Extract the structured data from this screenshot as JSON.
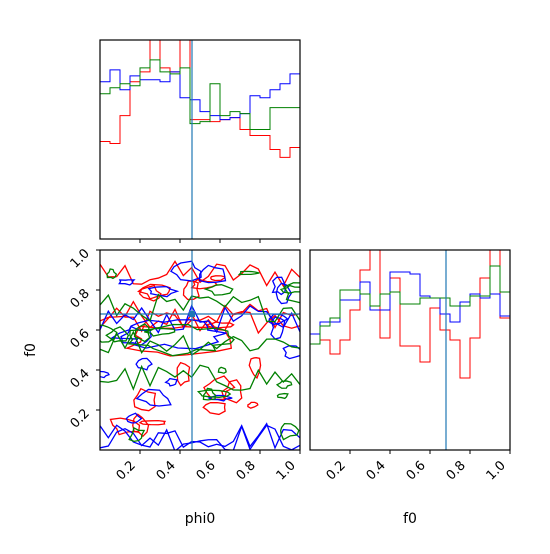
{
  "chart_data": {
    "type": "corner",
    "variables": [
      "phi0",
      "f0"
    ],
    "truth": {
      "phi0": 0.46,
      "f0": 0.68,
      "color": "#1f77b4"
    },
    "series_colors": [
      "#ff0000",
      "#0000ff",
      "#008000"
    ],
    "panels": [
      {
        "id": "hist-phi0",
        "type": "step-histogram",
        "variable": "phi0",
        "xlim": [
          0,
          1
        ],
        "ylim": [
          0,
          1
        ],
        "xticks": [
          "0.2",
          "0.4",
          "0.6",
          "0.8",
          "1.0"
        ],
        "show_xticklabels": false,
        "show_yticks": false,
        "bin_edges": [
          0,
          0.05,
          0.1,
          0.15,
          0.2,
          0.25,
          0.3,
          0.35,
          0.4,
          0.45,
          0.5,
          0.55,
          0.6,
          0.65,
          0.7,
          0.75,
          0.8,
          0.85,
          0.9,
          0.95,
          1.0
        ],
        "series": [
          {
            "color": "#ff0000",
            "values": [
              0.49,
              0.48,
              0.62,
              0.79,
              0.84,
              1.05,
              0.86,
              0.84,
              1.05,
              0.6,
              0.6,
              0.59,
              0.6,
              0.61,
              0.55,
              0.52,
              0.52,
              0.45,
              0.41,
              0.46
            ]
          },
          {
            "color": "#0000ff",
            "values": [
              0.79,
              0.85,
              0.75,
              0.82,
              0.8,
              0.8,
              0.79,
              0.84,
              0.71,
              0.7,
              0.64,
              0.62,
              0.6,
              0.61,
              0.63,
              0.72,
              0.71,
              0.75,
              0.78,
              0.83
            ]
          },
          {
            "color": "#008000",
            "values": [
              0.73,
              0.76,
              0.78,
              0.77,
              0.86,
              0.9,
              0.84,
              0.83,
              0.86,
              0.58,
              0.59,
              0.78,
              0.62,
              0.64,
              0.63,
              0.55,
              0.55,
              0.66,
              0.66,
              0.66
            ]
          }
        ]
      },
      {
        "id": "hist-f0",
        "type": "step-histogram",
        "variable": "f0",
        "xlim": [
          0,
          1
        ],
        "ylim": [
          0,
          1
        ],
        "xlabel": "f0",
        "xticks": [
          "0.2",
          "0.4",
          "0.6",
          "0.8",
          "1.0"
        ],
        "show_yticks": false,
        "bin_edges": [
          0,
          0.05,
          0.1,
          0.15,
          0.2,
          0.25,
          0.3,
          0.35,
          0.4,
          0.45,
          0.5,
          0.55,
          0.6,
          0.65,
          0.7,
          0.75,
          0.8,
          0.85,
          0.9,
          0.95,
          1.0
        ],
        "series": [
          {
            "color": "#ff0000",
            "values": [
              0.53,
              0.55,
              0.48,
              0.55,
              0.7,
              0.9,
              1.05,
              0.56,
              0.86,
              0.52,
              0.52,
              0.44,
              0.71,
              0.6,
              0.55,
              0.36,
              0.56,
              0.86,
              1.05,
              0.66
            ]
          },
          {
            "color": "#0000ff",
            "values": [
              0.58,
              0.64,
              0.64,
              0.75,
              0.75,
              0.84,
              0.7,
              0.7,
              0.89,
              0.89,
              0.88,
              0.77,
              0.76,
              0.68,
              0.64,
              0.74,
              0.78,
              0.76,
              0.78,
              0.67
            ]
          },
          {
            "color": "#008000",
            "values": [
              0.53,
              0.62,
              0.66,
              0.8,
              0.8,
              0.78,
              0.72,
              0.78,
              0.79,
              0.73,
              0.73,
              0.76,
              0.76,
              0.76,
              0.72,
              0.72,
              0.77,
              0.77,
              0.92,
              0.79
            ]
          }
        ]
      },
      {
        "id": "contour-f0-vs-phi0",
        "type": "contour",
        "x_variable": "phi0",
        "y_variable": "f0",
        "xlim": [
          0,
          1
        ],
        "ylim": [
          0,
          1
        ],
        "xlabel": "phi0",
        "ylabel": "f0",
        "xticks": [
          "0.2",
          "0.4",
          "0.6",
          "0.8",
          "1.0"
        ],
        "yticks": [
          "0.2",
          "0.4",
          "0.6",
          "0.8",
          "1.0"
        ],
        "levels": [
          0.75,
          0.95
        ],
        "series": [
          {
            "color": "#ff0000"
          },
          {
            "color": "#0000ff"
          },
          {
            "color": "#008000"
          }
        ]
      }
    ]
  }
}
